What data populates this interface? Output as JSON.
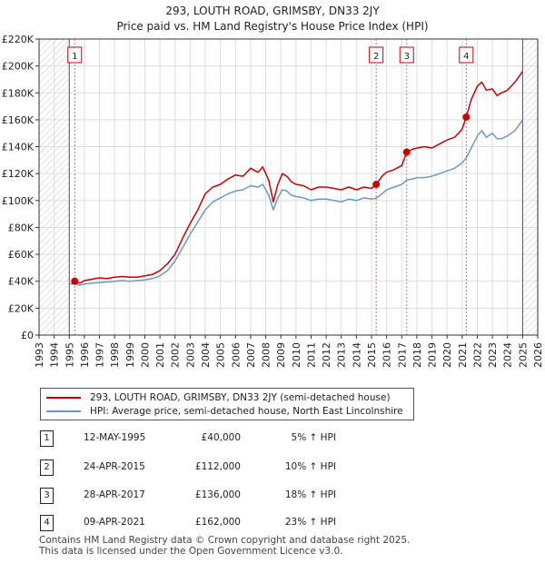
{
  "chart_data": {
    "type": "line",
    "title": "293, LOUTH ROAD, GRIMSBY, DN33 2JY",
    "subtitle": "Price paid vs. HM Land Registry's House Price Index (HPI)",
    "xlabel": "",
    "ylabel": "",
    "xlim": [
      1993,
      2026
    ],
    "ylim": [
      0,
      220000
    ],
    "x_ticks": [
      "1993",
      "1994",
      "1995",
      "1996",
      "1997",
      "1998",
      "1999",
      "2000",
      "2001",
      "2002",
      "2003",
      "2004",
      "2005",
      "2006",
      "2007",
      "2008",
      "2009",
      "2010",
      "2011",
      "2012",
      "2013",
      "2014",
      "2015",
      "2016",
      "2017",
      "2018",
      "2019",
      "2020",
      "2021",
      "2022",
      "2023",
      "2024",
      "2025",
      "2026"
    ],
    "y_ticks": [
      {
        "value": 0,
        "label": "£0"
      },
      {
        "value": 20000,
        "label": "£20K"
      },
      {
        "value": 40000,
        "label": "£40K"
      },
      {
        "value": 60000,
        "label": "£60K"
      },
      {
        "value": 80000,
        "label": "£80K"
      },
      {
        "value": 100000,
        "label": "£100K"
      },
      {
        "value": 120000,
        "label": "£120K"
      },
      {
        "value": 140000,
        "label": "£140K"
      },
      {
        "value": 160000,
        "label": "£160K"
      },
      {
        "value": 180000,
        "label": "£180K"
      },
      {
        "value": 200000,
        "label": "£200K"
      },
      {
        "value": 220000,
        "label": "£220K"
      }
    ],
    "grid": true,
    "hatched_before": 1995.0,
    "hatched_after": 2025.0,
    "series": [
      {
        "name": "293, LOUTH ROAD, GRIMSBY, DN33 2JY (semi-detached house)",
        "color": "#cc0000",
        "x": [
          1995.36,
          1995.7,
          1996.0,
          1996.5,
          1997.0,
          1997.5,
          1998.0,
          1998.5,
          1999.0,
          1999.5,
          2000.0,
          2000.5,
          2001.0,
          2001.5,
          2002.0,
          2002.5,
          2003.0,
          2003.5,
          2004.0,
          2004.5,
          2005.0,
          2005.5,
          2006.0,
          2006.5,
          2007.0,
          2007.5,
          2007.8,
          2008.2,
          2008.5,
          2008.8,
          2009.1,
          2009.4,
          2009.7,
          2010.0,
          2010.5,
          2011.0,
          2011.5,
          2012.0,
          2012.5,
          2013.0,
          2013.5,
          2014.0,
          2014.5,
          2015.0,
          2015.31,
          2015.7,
          2016.0,
          2016.5,
          2017.0,
          2017.33,
          2017.7,
          2018.0,
          2018.5,
          2019.0,
          2019.5,
          2020.0,
          2020.5,
          2021.0,
          2021.27,
          2021.6,
          2022.0,
          2022.3,
          2022.6,
          2023.0,
          2023.3,
          2023.6,
          2024.0,
          2024.5,
          2025.0
        ],
        "values": [
          40000,
          38500,
          40500,
          41500,
          42500,
          42000,
          43000,
          43500,
          43000,
          43000,
          44000,
          45000,
          48000,
          53000,
          60000,
          72000,
          83000,
          93000,
          105000,
          110000,
          112000,
          116000,
          119000,
          118000,
          124000,
          121000,
          125000,
          115000,
          99000,
          112000,
          120000,
          118000,
          114000,
          112000,
          111000,
          108000,
          110000,
          110000,
          109000,
          108000,
          110000,
          108000,
          110000,
          109000,
          112000,
          118000,
          121000,
          123000,
          126000,
          136000,
          138000,
          139000,
          140000,
          139000,
          142000,
          145000,
          147000,
          153000,
          162000,
          175000,
          185000,
          188000,
          182000,
          183000,
          178000,
          180000,
          182000,
          188000,
          196000
        ]
      },
      {
        "name": "HPI: Average price, semi-detached house, North East Lincolnshire",
        "color": "#6699cc",
        "x": [
          1995.0,
          1995.36,
          1995.7,
          1996.0,
          1996.5,
          1997.0,
          1997.5,
          1998.0,
          1998.5,
          1999.0,
          1999.5,
          2000.0,
          2000.5,
          2001.0,
          2001.5,
          2002.0,
          2002.5,
          2003.0,
          2003.5,
          2004.0,
          2004.5,
          2005.0,
          2005.5,
          2006.0,
          2006.5,
          2007.0,
          2007.5,
          2007.8,
          2008.2,
          2008.5,
          2008.8,
          2009.1,
          2009.4,
          2009.7,
          2010.0,
          2010.5,
          2011.0,
          2011.5,
          2012.0,
          2012.5,
          2013.0,
          2013.5,
          2014.0,
          2014.5,
          2015.0,
          2015.31,
          2015.7,
          2016.0,
          2016.5,
          2017.0,
          2017.33,
          2017.7,
          2018.0,
          2018.5,
          2019.0,
          2019.5,
          2020.0,
          2020.5,
          2021.0,
          2021.27,
          2021.6,
          2022.0,
          2022.3,
          2022.6,
          2023.0,
          2023.3,
          2023.6,
          2024.0,
          2024.5,
          2025.0
        ],
        "values": [
          38000,
          38100,
          37000,
          38000,
          38500,
          39000,
          39500,
          40000,
          40500,
          40000,
          40500,
          41000,
          42000,
          44000,
          48000,
          55000,
          65000,
          75000,
          84000,
          93000,
          99000,
          102000,
          105000,
          107000,
          108000,
          111000,
          110000,
          112000,
          104000,
          93000,
          102000,
          108000,
          107000,
          104000,
          103000,
          102000,
          100000,
          101000,
          101000,
          100000,
          99000,
          101000,
          100000,
          102000,
          101000,
          101800,
          105000,
          108000,
          110000,
          112000,
          115300,
          116000,
          117000,
          117000,
          118000,
          120000,
          122000,
          124000,
          128000,
          131700,
          139000,
          148000,
          152000,
          147000,
          150000,
          146000,
          146000,
          148000,
          152000,
          160000
        ]
      }
    ],
    "markers": [
      {
        "label": "1",
        "x": 1995.36,
        "y": 40000
      },
      {
        "label": "2",
        "x": 2015.31,
        "y": 112000
      },
      {
        "label": "3",
        "x": 2017.33,
        "y": 136000
      },
      {
        "label": "4",
        "x": 2021.27,
        "y": 162000
      }
    ]
  },
  "transactions": [
    {
      "num": "1",
      "date": "12-MAY-1995",
      "price": "£40,000",
      "pct": "5% ↑ HPI"
    },
    {
      "num": "2",
      "date": "24-APR-2015",
      "price": "£112,000",
      "pct": "10% ↑ HPI"
    },
    {
      "num": "3",
      "date": "28-APR-2017",
      "price": "£136,000",
      "pct": "18% ↑ HPI"
    },
    {
      "num": "4",
      "date": "09-APR-2021",
      "price": "£162,000",
      "pct": "23% ↑ HPI"
    }
  ],
  "footer": {
    "line1": "Contains HM Land Registry data © Crown copyright and database right 2025.",
    "line2": "This data is licensed under the Open Government Licence v3.0."
  }
}
